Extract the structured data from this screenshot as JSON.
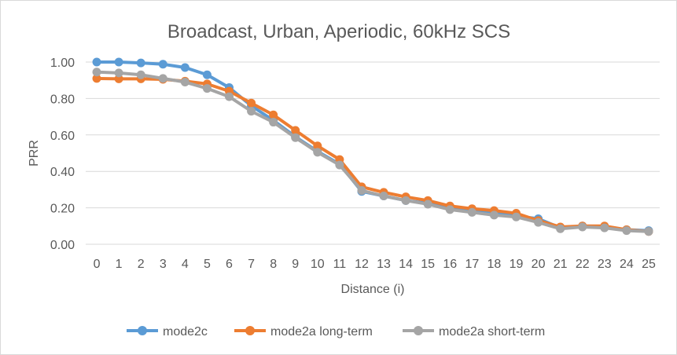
{
  "chart_data": {
    "type": "line",
    "title": "Broadcast, Urban, Aperiodic, 60kHz SCS",
    "xlabel": "Distance (i)",
    "ylabel": "PRR",
    "categories": [
      "0",
      "1",
      "2",
      "3",
      "4",
      "5",
      "6",
      "7",
      "8",
      "9",
      "10",
      "11",
      "12",
      "13",
      "14",
      "15",
      "16",
      "17",
      "18",
      "19",
      "20",
      "21",
      "22",
      "23",
      "24",
      "25"
    ],
    "yticks": [
      "0.00",
      "0.20",
      "0.40",
      "0.60",
      "0.80",
      "1.00"
    ],
    "ylim": [
      0,
      1
    ],
    "grid": "horizontal",
    "legend_position": "bottom",
    "series": [
      {
        "name": "mode2c",
        "color": "#5b9bd5",
        "values": [
          1.0,
          1.0,
          0.995,
          0.988,
          0.97,
          0.93,
          0.86,
          0.76,
          0.68,
          0.59,
          0.51,
          0.44,
          0.29,
          0.265,
          0.24,
          0.225,
          0.195,
          0.18,
          0.17,
          0.155,
          0.14,
          0.09,
          0.1,
          0.095,
          0.08,
          0.075
        ]
      },
      {
        "name": "mode2a long-term",
        "color": "#ed7d31",
        "values": [
          0.91,
          0.908,
          0.908,
          0.905,
          0.895,
          0.88,
          0.84,
          0.775,
          0.71,
          0.625,
          0.54,
          0.465,
          0.315,
          0.285,
          0.26,
          0.24,
          0.21,
          0.195,
          0.185,
          0.17,
          0.13,
          0.095,
          0.1,
          0.1,
          0.08,
          0.07
        ]
      },
      {
        "name": "mode2a short-term",
        "color": "#a5a5a5",
        "values": [
          0.945,
          0.94,
          0.93,
          0.91,
          0.89,
          0.855,
          0.81,
          0.73,
          0.67,
          0.585,
          0.505,
          0.435,
          0.295,
          0.265,
          0.24,
          0.22,
          0.19,
          0.175,
          0.16,
          0.15,
          0.12,
          0.085,
          0.095,
          0.09,
          0.075,
          0.07
        ]
      }
    ]
  }
}
